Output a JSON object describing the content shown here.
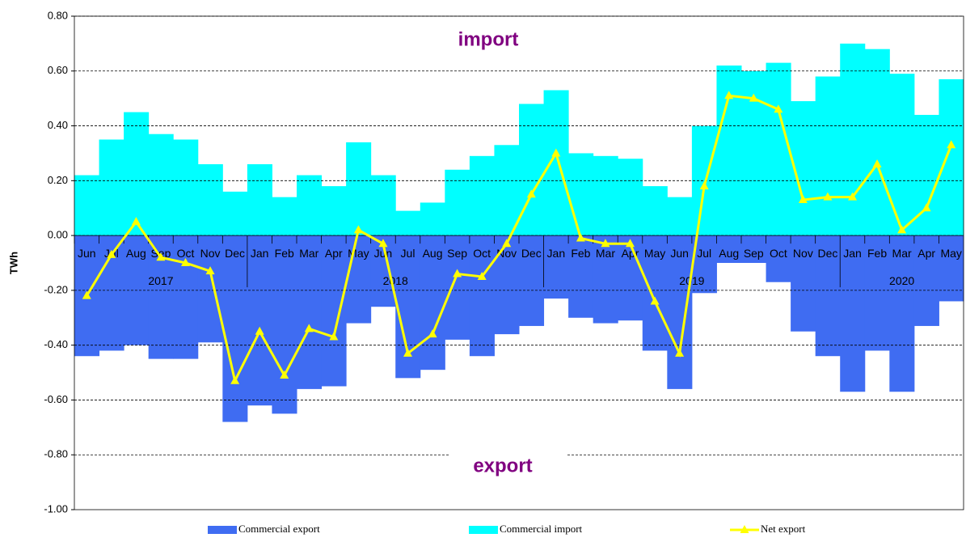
{
  "chart_data": {
    "type": "bar-line",
    "y_label": "TWh",
    "annotations": [
      "import",
      "export"
    ],
    "categories": [
      "Jun",
      "Jul",
      "Aug",
      "Sep",
      "Oct",
      "Nov",
      "Dec",
      "Jan",
      "Feb",
      "Mar",
      "Apr",
      "May",
      "Jun",
      "Jul",
      "Aug",
      "Sep",
      "Oct",
      "Nov",
      "Dec",
      "Jan",
      "Feb",
      "Mar",
      "Apr",
      "May",
      "Jun",
      "Jul",
      "Aug",
      "Sep",
      "Oct",
      "Nov",
      "Dec",
      "Jan",
      "Feb",
      "Mar",
      "Apr",
      "May"
    ],
    "years": [
      "2017",
      "2018",
      "2019",
      "2020"
    ],
    "series": [
      {
        "name": "Commercial export",
        "color": "#3f6cf2",
        "kind": "bar",
        "values": [
          -0.44,
          -0.42,
          -0.4,
          -0.45,
          -0.45,
          -0.39,
          -0.68,
          -0.62,
          -0.65,
          -0.56,
          -0.55,
          -0.32,
          -0.26,
          -0.52,
          -0.49,
          -0.38,
          -0.44,
          -0.36,
          -0.33,
          -0.23,
          -0.3,
          -0.32,
          -0.31,
          -0.42,
          -0.56,
          -0.21,
          -0.1,
          -0.1,
          -0.17,
          -0.35,
          -0.44,
          -0.57,
          -0.42,
          -0.57,
          -0.33,
          -0.24
        ]
      },
      {
        "name": "Commercial import",
        "color": "#00ffff",
        "kind": "bar",
        "values": [
          0.22,
          0.35,
          0.45,
          0.37,
          0.35,
          0.26,
          0.16,
          0.26,
          0.14,
          0.22,
          0.18,
          0.34,
          0.22,
          0.09,
          0.12,
          0.24,
          0.29,
          0.33,
          0.48,
          0.53,
          0.3,
          0.29,
          0.28,
          0.18,
          0.14,
          0.4,
          0.62,
          0.6,
          0.63,
          0.49,
          0.58,
          0.7,
          0.68,
          0.59,
          0.44,
          0.57
        ]
      },
      {
        "name": "Net export",
        "color": "#ffff00",
        "kind": "line",
        "values": [
          -0.22,
          -0.07,
          0.05,
          -0.08,
          -0.1,
          -0.13,
          -0.53,
          -0.35,
          -0.51,
          -0.34,
          -0.37,
          0.02,
          -0.03,
          -0.43,
          -0.36,
          -0.14,
          -0.15,
          -0.03,
          0.15,
          0.3,
          -0.01,
          -0.03,
          -0.03,
          -0.24,
          -0.43,
          0.18,
          0.51,
          0.5,
          0.46,
          0.13,
          0.14,
          0.14,
          0.26,
          0.02,
          0.1,
          0.33
        ]
      }
    ],
    "ylim": [
      -1.0,
      0.8
    ],
    "yticks": [
      {
        "value": -1.0,
        "label": "-1.00"
      },
      {
        "value": -0.8,
        "label": "-0.80"
      },
      {
        "value": -0.6,
        "label": "-0.60"
      },
      {
        "value": -0.4,
        "label": "-0.40"
      },
      {
        "value": -0.2,
        "label": "-0.20"
      },
      {
        "value": 0,
        "label": "0.00"
      },
      {
        "value": 0.2,
        "label": "0.20"
      },
      {
        "value": 0.4,
        "label": "0.40"
      },
      {
        "value": 0.6,
        "label": "0.60"
      },
      {
        "value": 0.8,
        "label": "0.80"
      }
    ],
    "grid": true,
    "legend": "bottom"
  }
}
